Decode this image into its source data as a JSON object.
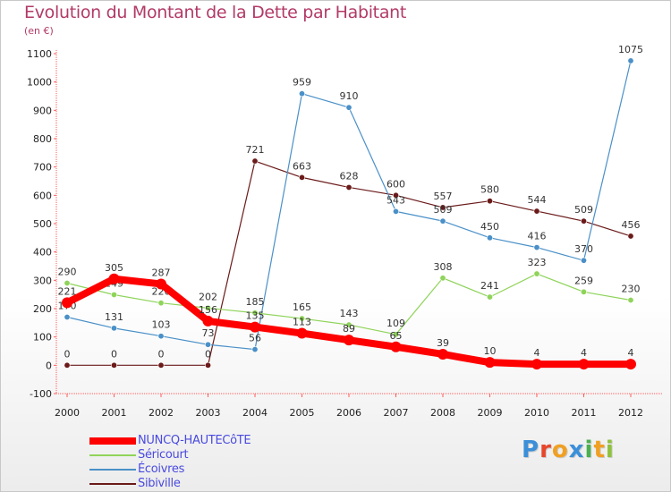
{
  "title": "Evolution du Montant de la Dette par Habitant",
  "unit": "(en €)",
  "logo": {
    "text": "Proxiti",
    "colors": [
      "#3b8fd9",
      "#e8462b",
      "#f0a023",
      "#3b8fd9",
      "#4caf50",
      "#f0a023",
      "#8fc23c"
    ]
  },
  "chart_data": {
    "type": "line",
    "x": [
      "2000",
      "2001",
      "2002",
      "2003",
      "2004",
      "2005",
      "2006",
      "2007",
      "2008",
      "2009",
      "2010",
      "2011",
      "2012"
    ],
    "ylim": [
      -100,
      1100
    ],
    "yticks": [
      -100,
      0,
      100,
      200,
      300,
      400,
      500,
      600,
      700,
      800,
      900,
      1000,
      1100
    ],
    "grid": false,
    "legend_position": "bottom-left",
    "series": [
      {
        "name": "Sibiville",
        "color": "#6b1a1a",
        "values": [
          0,
          0,
          0,
          0,
          721,
          663,
          628,
          600,
          557,
          580,
          544,
          509,
          456
        ]
      },
      {
        "name": "Écoivres",
        "color": "#4a90c8",
        "values": [
          170,
          131,
          103,
          73,
          56,
          959,
          910,
          543,
          509,
          450,
          416,
          370,
          1075
        ]
      },
      {
        "name": "Séricourt",
        "color": "#8fd45a",
        "values": [
          290,
          249,
          220,
          202,
          185,
          165,
          143,
          109,
          308,
          241,
          323,
          259,
          230
        ]
      },
      {
        "name": "NUNCQ-HAUTECôTE",
        "color": "#ff0000",
        "values": [
          221,
          305,
          287,
          156,
          135,
          113,
          89,
          65,
          39,
          10,
          4,
          4,
          4
        ]
      }
    ]
  }
}
